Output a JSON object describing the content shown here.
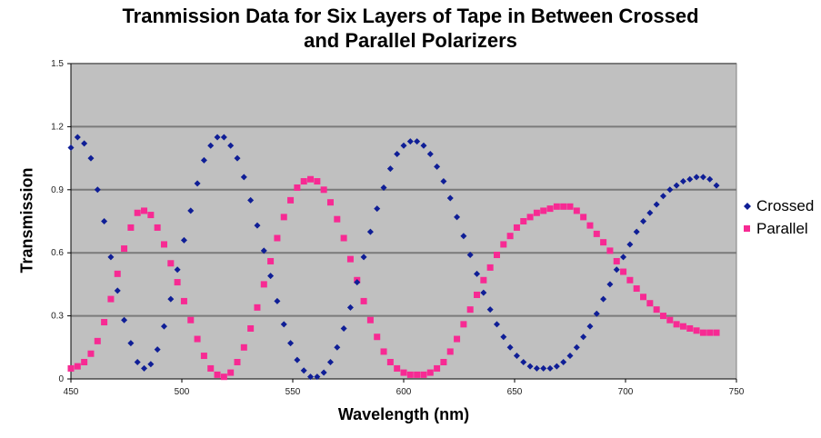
{
  "chart_data": {
    "type": "scatter",
    "title_line1": "Tranmission Data for Six Layers of Tape in Between Crossed",
    "title_line2": "and Parallel Polarizers",
    "xlabel": "Wavelength (nm)",
    "ylabel": "Transmission",
    "xlim": [
      450,
      750
    ],
    "ylim": [
      0,
      1.5
    ],
    "xticks": [
      "450",
      "500",
      "550",
      "600",
      "650",
      "700",
      "750"
    ],
    "yticks": [
      "0",
      "0.3",
      "0.6",
      "0.9",
      "1.2",
      "1.5"
    ],
    "grid": true,
    "legend_position": "right",
    "x": [
      450,
      453,
      456,
      459,
      462,
      465,
      468,
      471,
      474,
      477,
      480,
      483,
      486,
      489,
      492,
      495,
      498,
      501,
      504,
      507,
      510,
      513,
      516,
      519,
      522,
      525,
      528,
      531,
      534,
      537,
      540,
      543,
      546,
      549,
      552,
      555,
      558,
      561,
      564,
      567,
      570,
      573,
      576,
      579,
      582,
      585,
      588,
      591,
      594,
      597,
      600,
      603,
      606,
      609,
      612,
      615,
      618,
      621,
      624,
      627,
      630,
      633,
      636,
      639,
      642,
      645,
      648,
      651,
      654,
      657,
      660,
      663,
      666,
      669,
      672,
      675,
      678,
      681,
      684,
      687,
      690,
      693,
      696,
      699,
      702,
      705,
      708,
      711,
      714,
      717,
      720,
      723,
      726,
      729,
      732,
      735,
      738,
      741
    ],
    "series": [
      {
        "name": "Crossed",
        "color": "#0f1e96",
        "marker": "diamond",
        "values": [
          1.1,
          1.15,
          1.12,
          1.05,
          0.9,
          0.75,
          0.58,
          0.42,
          0.28,
          0.17,
          0.08,
          0.05,
          0.07,
          0.14,
          0.25,
          0.38,
          0.52,
          0.66,
          0.8,
          0.93,
          1.04,
          1.11,
          1.15,
          1.15,
          1.11,
          1.05,
          0.96,
          0.85,
          0.73,
          0.61,
          0.49,
          0.37,
          0.26,
          0.17,
          0.09,
          0.04,
          0.01,
          0.01,
          0.03,
          0.08,
          0.15,
          0.24,
          0.34,
          0.46,
          0.58,
          0.7,
          0.81,
          0.91,
          1.0,
          1.07,
          1.11,
          1.13,
          1.13,
          1.11,
          1.07,
          1.01,
          0.94,
          0.86,
          0.77,
          0.68,
          0.59,
          0.5,
          0.41,
          0.33,
          0.26,
          0.2,
          0.15,
          0.11,
          0.08,
          0.06,
          0.05,
          0.05,
          0.05,
          0.06,
          0.08,
          0.11,
          0.15,
          0.2,
          0.25,
          0.31,
          0.38,
          0.45,
          0.52,
          0.58,
          0.64,
          0.7,
          0.75,
          0.79,
          0.83,
          0.87,
          0.9,
          0.92,
          0.94,
          0.95,
          0.96,
          0.96,
          0.95,
          0.92
        ]
      },
      {
        "name": "Parallel",
        "color": "#f72a93",
        "marker": "square",
        "values": [
          0.05,
          0.06,
          0.08,
          0.12,
          0.18,
          0.27,
          0.38,
          0.5,
          0.62,
          0.72,
          0.79,
          0.8,
          0.78,
          0.72,
          0.64,
          0.55,
          0.46,
          0.37,
          0.28,
          0.19,
          0.11,
          0.05,
          0.02,
          0.01,
          0.03,
          0.08,
          0.15,
          0.24,
          0.34,
          0.45,
          0.56,
          0.67,
          0.77,
          0.85,
          0.91,
          0.94,
          0.95,
          0.94,
          0.9,
          0.84,
          0.76,
          0.67,
          0.57,
          0.47,
          0.37,
          0.28,
          0.2,
          0.13,
          0.08,
          0.05,
          0.03,
          0.02,
          0.02,
          0.02,
          0.03,
          0.05,
          0.08,
          0.13,
          0.19,
          0.26,
          0.33,
          0.4,
          0.47,
          0.53,
          0.59,
          0.64,
          0.68,
          0.72,
          0.75,
          0.77,
          0.79,
          0.8,
          0.81,
          0.82,
          0.82,
          0.82,
          0.8,
          0.77,
          0.73,
          0.69,
          0.65,
          0.61,
          0.56,
          0.51,
          0.47,
          0.43,
          0.39,
          0.36,
          0.33,
          0.3,
          0.28,
          0.26,
          0.25,
          0.24,
          0.23,
          0.22,
          0.22,
          0.22
        ]
      }
    ]
  }
}
